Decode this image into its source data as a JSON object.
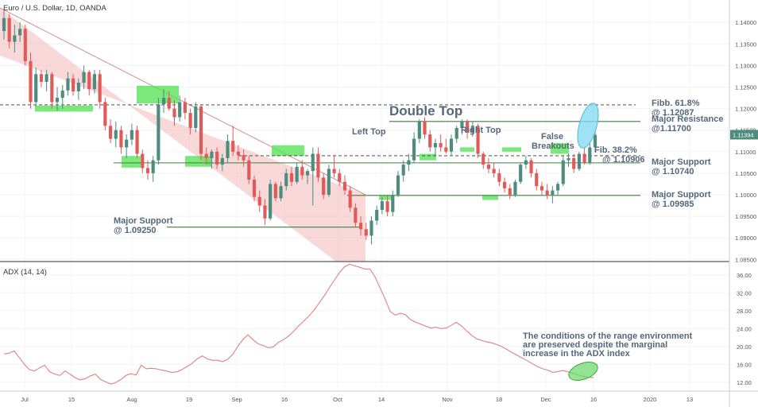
{
  "header": {
    "title": "Euro / U.S. Dollar, 1D, OANDA",
    "indicator_title": "ADX (14, 14)"
  },
  "colors": {
    "bull": "#4d8c7f",
    "bear": "#e05a5a",
    "channel": "#f2b8b8",
    "channel_edge": "#c06060",
    "zone": "#4fe04f",
    "support_line": "#3f7f3f",
    "resistance_dash": "#4f4f4f",
    "adx_line": "#e08080",
    "highlight_blue": "#7fd8f0",
    "highlight_green": "#66d966",
    "text": "#55677a",
    "price_tag": "#4d8c7f",
    "axis_text": "#555555",
    "grid": "#f0f3f6"
  },
  "annotations": {
    "double_top": "Double Top",
    "left_top": "Left Top",
    "right_top": "Right Top",
    "false_breakouts_1": "False",
    "false_breakouts_2": "Breakouts",
    "fib_618_1": "Fibb. 61.8%",
    "fib_618_2": "@ 1.12087",
    "major_resistance_1": "Major Resistance",
    "major_resistance_2": "@1.11700",
    "fib_382_1": "Fib. 38.2%",
    "fib_382_2": "@ 1.10906",
    "major_support_1074_1": "Major Support",
    "major_support_1074_2": "@ 1.10740",
    "major_support_0998_1": "Major Support",
    "major_support_0998_2": "@ 1.09985",
    "major_support_0925_1": "Major Support",
    "major_support_0925_2": "@ 1.09250",
    "adx_note_1": "The conditions of the range environment",
    "adx_note_2": "are preserved despite the marginal",
    "adx_note_3": "increase in the ADX index"
  },
  "chart_data": [
    {
      "type": "candlestick",
      "title": "Euro / U.S. Dollar, 1D, OANDA",
      "ylim": [
        1.0845,
        1.1452
      ],
      "y_ticks": [
        "1.14000",
        "1.13500",
        "1.13000",
        "1.12500",
        "1.12000",
        "1.11500",
        "1.11000",
        "1.10500",
        "1.10000",
        "1.09500",
        "1.09000",
        "1.08500"
      ],
      "current_price": "1.11394",
      "x_ticks": [
        "Jul",
        "15",
        "Aug",
        "19",
        "Sep",
        "16",
        "Oct",
        "14",
        "Nov",
        "18",
        "Dec",
        "16",
        "2020",
        "13"
      ],
      "levels": [
        {
          "label": "Fibb. 61.8%",
          "value": 1.12087,
          "style": "dashed"
        },
        {
          "label": "Major Resistance",
          "value": 1.117,
          "style": "solid"
        },
        {
          "label": "Fib. 38.2%",
          "value": 1.10906,
          "style": "dashed"
        },
        {
          "label": "Major Support",
          "value": 1.1074,
          "style": "solid"
        },
        {
          "label": "Major Support",
          "value": 1.09985,
          "style": "solid"
        },
        {
          "label": "Major Support",
          "value": 1.0925,
          "style": "solid"
        }
      ],
      "candles": [
        [
          1.138,
          1.143,
          1.136,
          1.141
        ],
        [
          1.141,
          1.142,
          1.134,
          1.1355
        ],
        [
          1.1355,
          1.1395,
          1.133,
          1.137
        ],
        [
          1.137,
          1.14,
          1.1355,
          1.1385
        ],
        [
          1.1385,
          1.1395,
          1.13,
          1.131
        ],
        [
          1.131,
          1.133,
          1.12,
          1.1215
        ],
        [
          1.1215,
          1.1295,
          1.1205,
          1.128
        ],
        [
          1.128,
          1.129,
          1.125,
          1.1262
        ],
        [
          1.1262,
          1.129,
          1.124,
          1.128
        ],
        [
          1.128,
          1.1285,
          1.12,
          1.1215
        ],
        [
          1.1215,
          1.125,
          1.1195,
          1.1225
        ],
        [
          1.1225,
          1.1255,
          1.12,
          1.1242
        ],
        [
          1.1242,
          1.1285,
          1.123,
          1.127
        ],
        [
          1.127,
          1.128,
          1.123,
          1.124
        ],
        [
          1.124,
          1.127,
          1.122,
          1.126
        ],
        [
          1.126,
          1.13,
          1.1245,
          1.1285
        ],
        [
          1.1285,
          1.129,
          1.123,
          1.1245
        ],
        [
          1.1245,
          1.129,
          1.1235,
          1.128
        ],
        [
          1.128,
          1.129,
          1.12,
          1.1215
        ],
        [
          1.1215,
          1.1225,
          1.115,
          1.116
        ],
        [
          1.116,
          1.1175,
          1.112,
          1.113
        ],
        [
          1.113,
          1.117,
          1.111,
          1.115
        ],
        [
          1.115,
          1.116,
          1.1095,
          1.111
        ],
        [
          1.111,
          1.114,
          1.1085,
          1.1128
        ],
        [
          1.1128,
          1.1165,
          1.1115,
          1.115
        ],
        [
          1.115,
          1.116,
          1.1085,
          1.1095
        ],
        [
          1.1095,
          1.1105,
          1.105,
          1.1062
        ],
        [
          1.1062,
          1.108,
          1.1035,
          1.105
        ],
        [
          1.105,
          1.109,
          1.103,
          1.108
        ],
        [
          1.108,
          1.1225,
          1.107,
          1.121
        ],
        [
          1.121,
          1.1245,
          1.119,
          1.1225
        ],
        [
          1.1225,
          1.124,
          1.1195,
          1.12
        ],
        [
          1.12,
          1.122,
          1.116,
          1.118
        ],
        [
          1.118,
          1.123,
          1.117,
          1.1215
        ],
        [
          1.1215,
          1.1225,
          1.1175,
          1.119
        ],
        [
          1.119,
          1.12,
          1.114,
          1.1155
        ],
        [
          1.1155,
          1.1215,
          1.1145,
          1.1205
        ],
        [
          1.1205,
          1.121,
          1.108,
          1.1095
        ],
        [
          1.1095,
          1.111,
          1.107,
          1.1085
        ],
        [
          1.1085,
          1.1105,
          1.106,
          1.11
        ],
        [
          1.11,
          1.111,
          1.106,
          1.107
        ],
        [
          1.107,
          1.1095,
          1.1055,
          1.1085
        ],
        [
          1.1085,
          1.114,
          1.1075,
          1.1125
        ],
        [
          1.1125,
          1.116,
          1.109,
          1.11
        ],
        [
          1.11,
          1.1115,
          1.108,
          1.1092
        ],
        [
          1.1092,
          1.1105,
          1.1065,
          1.108
        ],
        [
          1.108,
          1.109,
          1.1025,
          1.1035
        ],
        [
          1.1035,
          1.1045,
          1.0985,
          1.0995
        ],
        [
          1.0995,
          1.101,
          1.096,
          1.0975
        ],
        [
          1.0975,
          1.099,
          1.093,
          1.0945
        ],
        [
          1.0945,
          1.1035,
          1.094,
          1.1025
        ],
        [
          1.1025,
          1.103,
          1.0985,
          1.0992
        ],
        [
          1.0992,
          1.103,
          1.0985,
          1.102
        ],
        [
          1.102,
          1.106,
          1.101,
          1.105
        ],
        [
          1.105,
          1.1065,
          1.102,
          1.103
        ],
        [
          1.103,
          1.1075,
          1.1025,
          1.1065
        ],
        [
          1.1065,
          1.108,
          1.1035,
          1.1045
        ],
        [
          1.1045,
          1.106,
          1.1025,
          1.1055
        ],
        [
          1.1055,
          1.111,
          1.0975,
          1.1095
        ],
        [
          1.1095,
          1.111,
          1.103,
          1.104
        ],
        [
          1.104,
          1.105,
          1.099,
          1.1
        ],
        [
          1.1,
          1.107,
          1.0995,
          1.106
        ],
        [
          1.106,
          1.109,
          1.104,
          1.105
        ],
        [
          1.105,
          1.106,
          1.102,
          1.103
        ],
        [
          1.103,
          1.1045,
          1.1,
          1.101
        ],
        [
          1.101,
          1.102,
          1.096,
          1.097
        ],
        [
          1.097,
          1.098,
          1.0925,
          1.0935
        ],
        [
          1.0935,
          1.095,
          1.0905,
          1.092
        ],
        [
          1.092,
          1.0935,
          1.0895,
          1.0905
        ],
        [
          1.0905,
          1.095,
          1.0885,
          1.094
        ],
        [
          1.094,
          1.0975,
          1.093,
          1.0965
        ],
        [
          1.0965,
          1.0995,
          1.0955,
          1.0985
        ],
        [
          1.0985,
          1.1,
          1.095,
          1.096
        ],
        [
          1.096,
          1.101,
          1.095,
          1.1
        ],
        [
          1.1,
          1.1055,
          1.0995,
          1.1045
        ],
        [
          1.1045,
          1.108,
          1.103,
          1.107
        ],
        [
          1.107,
          1.1095,
          1.1055,
          1.108
        ],
        [
          1.108,
          1.1145,
          1.1075,
          1.113
        ],
        [
          1.113,
          1.1175,
          1.112,
          1.117
        ],
        [
          1.117,
          1.118,
          1.113,
          1.114
        ],
        [
          1.114,
          1.115,
          1.11,
          1.111
        ],
        [
          1.111,
          1.113,
          1.109,
          1.112
        ],
        [
          1.112,
          1.114,
          1.11,
          1.111
        ],
        [
          1.111,
          1.113,
          1.1095,
          1.11
        ],
        [
          1.11,
          1.114,
          1.109,
          1.113
        ],
        [
          1.113,
          1.116,
          1.112,
          1.1155
        ],
        [
          1.1155,
          1.1175,
          1.114,
          1.117
        ],
        [
          1.117,
          1.1175,
          1.113,
          1.1145
        ],
        [
          1.1145,
          1.117,
          1.1135,
          1.116
        ],
        [
          1.116,
          1.1165,
          1.1085,
          1.1095
        ],
        [
          1.1095,
          1.11,
          1.106,
          1.107
        ],
        [
          1.107,
          1.1085,
          1.105,
          1.106
        ],
        [
          1.106,
          1.1075,
          1.104,
          1.105
        ],
        [
          1.105,
          1.106,
          1.102,
          1.103
        ],
        [
          1.103,
          1.104,
          1.1005,
          1.1015
        ],
        [
          1.1015,
          1.1025,
          1.099,
          1.1
        ],
        [
          1.1,
          1.1035,
          1.0995,
          1.103
        ],
        [
          1.103,
          1.1075,
          1.1025,
          1.107
        ],
        [
          1.107,
          1.109,
          1.106,
          1.108
        ],
        [
          1.108,
          1.1085,
          1.104,
          1.105
        ],
        [
          1.105,
          1.106,
          1.101,
          1.102
        ],
        [
          1.102,
          1.103,
          1.1,
          1.101
        ],
        [
          1.101,
          1.1025,
          1.099,
          1.1
        ],
        [
          1.1,
          1.102,
          1.098,
          1.101
        ],
        [
          1.101,
          1.103,
          1.1,
          1.1025
        ],
        [
          1.1025,
          1.109,
          1.102,
          1.108
        ],
        [
          1.108,
          1.1095,
          1.1065,
          1.1085
        ],
        [
          1.1085,
          1.1095,
          1.105,
          1.106
        ],
        [
          1.106,
          1.11,
          1.1055,
          1.1095
        ],
        [
          1.1095,
          1.111,
          1.107,
          1.1075
        ],
        [
          1.1075,
          1.112,
          1.107,
          1.111
        ],
        [
          1.111,
          1.115,
          1.11,
          1.1139
        ]
      ]
    },
    {
      "type": "line",
      "title": "ADX (14, 14)",
      "ylim": [
        10.0,
        38.8
      ],
      "y_ticks": [
        "36.00",
        "32.00",
        "28.00",
        "24.00",
        "20.00",
        "16.00",
        "12.00"
      ],
      "x_ticks": [
        "Jul",
        "15",
        "Aug",
        "19",
        "Sep",
        "16",
        "Oct",
        "14",
        "Nov",
        "18",
        "Dec",
        "16",
        "2020",
        "13"
      ],
      "series": [
        {
          "values": [
            18.3,
            18.5,
            19.0,
            17.5,
            16.0,
            14.8,
            14.5,
            15.2,
            15.8,
            14.3,
            13.8,
            13.5,
            14.5,
            13.8,
            13.0,
            12.5,
            12.8,
            13.4,
            13.8,
            12.6,
            12.1,
            11.6,
            11.9,
            12.6,
            13.5,
            13.9,
            13.6,
            15.8,
            15.0,
            15.1,
            15.0,
            14.7,
            14.5,
            14.2,
            14.3,
            14.8,
            15.5,
            16.2,
            17.2,
            17.9,
            17.2,
            16.9,
            16.9,
            16.6,
            17.1,
            18.2,
            20.0,
            21.5,
            22.6,
            21.5,
            20.6,
            20.2,
            19.7,
            19.9,
            20.9,
            21.5,
            22.3,
            23.4,
            24.6,
            25.7,
            26.8,
            28.1,
            29.7,
            31.3,
            33.1,
            34.8,
            36.5,
            37.8,
            38.4,
            38.0,
            37.7,
            37.3,
            37.3,
            35.6,
            33.1,
            30.6,
            27.8,
            27.0,
            27.4,
            27.1,
            26.0,
            25.4,
            25.0,
            24.5,
            24.1,
            24.3,
            24.0,
            24.1,
            24.7,
            25.4,
            24.6,
            23.5,
            22.5,
            21.7,
            21.3,
            21.0,
            20.8,
            20.4,
            19.9,
            19.3,
            18.6,
            18.0,
            17.4,
            16.8,
            16.1,
            15.5,
            15.0,
            14.7,
            14.2,
            14.4,
            14.6,
            14.3,
            14.0,
            13.6,
            13.3,
            13.1,
            13.0
          ]
        }
      ]
    }
  ]
}
